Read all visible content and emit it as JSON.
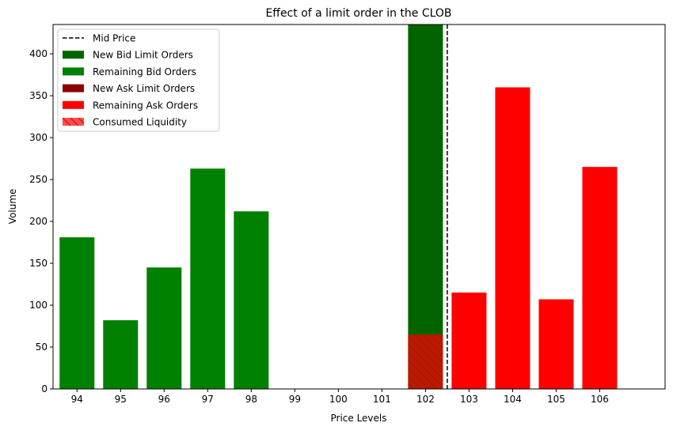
{
  "chart_data": {
    "type": "bar",
    "title": "Effect of a limit order in the CLOB",
    "xlabel": "Price Levels",
    "ylabel": "Volume",
    "xlim": [
      93.45,
      107.5
    ],
    "ylim": [
      0,
      435
    ],
    "x_ticks": [
      94,
      95,
      96,
      97,
      98,
      99,
      100,
      101,
      102,
      103,
      104,
      105,
      106
    ],
    "y_ticks": [
      0,
      50,
      100,
      150,
      200,
      250,
      300,
      350,
      400
    ],
    "grid": false,
    "legend_position": "top-left",
    "bar_width": 0.8,
    "mid_price": 102.5,
    "series": [
      {
        "name": "New Bid Limit Orders",
        "color": "#006400",
        "x": [
          102
        ],
        "values": [
          435
        ]
      },
      {
        "name": "Remaining Bid Orders",
        "color": "#008000",
        "x": [
          94,
          95,
          96,
          97,
          98
        ],
        "values": [
          181,
          82,
          145,
          263,
          212
        ]
      },
      {
        "name": "New Ask Limit Orders",
        "color": "#8b0000",
        "x": [],
        "values": []
      },
      {
        "name": "Remaining Ask Orders",
        "color": "#ff0000",
        "x": [
          103,
          104,
          105,
          106
        ],
        "values": [
          115,
          360,
          107,
          265
        ]
      },
      {
        "name": "Consumed Liquidity",
        "color": "#ff0000",
        "hatch": true,
        "x": [
          102
        ],
        "values": [
          65
        ]
      }
    ],
    "legend": [
      {
        "label": "Mid Price",
        "kind": "dashed-line",
        "color": "#000000"
      },
      {
        "label": "New Bid Limit Orders",
        "kind": "patch",
        "color": "#006400"
      },
      {
        "label": "Remaining Bid Orders",
        "kind": "patch",
        "color": "#008000"
      },
      {
        "label": "New Ask Limit Orders",
        "kind": "patch",
        "color": "#8b0000"
      },
      {
        "label": "Remaining Ask Orders",
        "kind": "patch",
        "color": "#ff0000"
      },
      {
        "label": "Consumed Liquidity",
        "kind": "hatch",
        "color": "#ff0000"
      }
    ]
  }
}
